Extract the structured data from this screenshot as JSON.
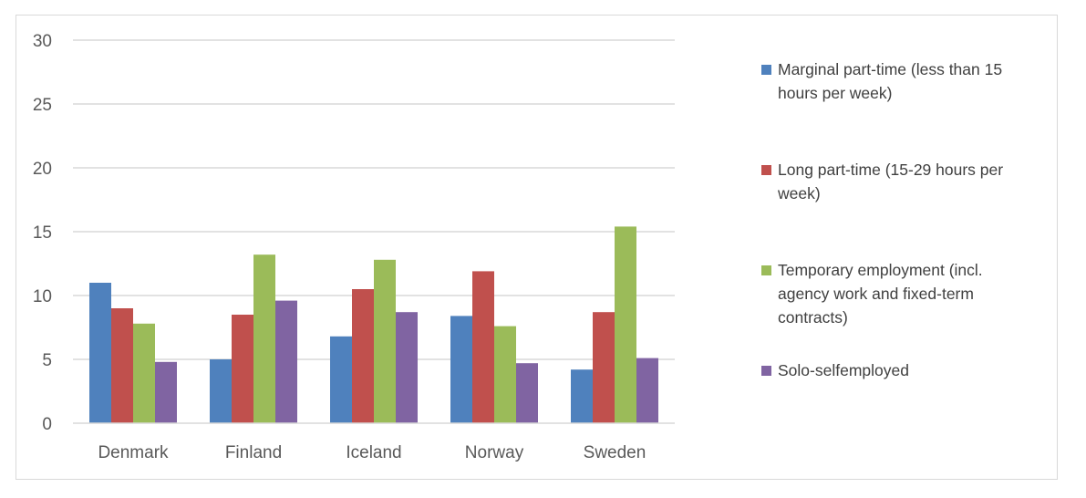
{
  "chart_data": {
    "type": "bar",
    "title": "",
    "xlabel": "",
    "ylabel": "",
    "ylim": [
      0,
      30
    ],
    "yticks": [
      0,
      5,
      10,
      15,
      20,
      25,
      30
    ],
    "grid": true,
    "legend_position": "right",
    "categories": [
      "Denmark",
      "Finland",
      "Iceland",
      "Norway",
      "Sweden"
    ],
    "series": [
      {
        "name": "Marginal part-time (less than 15 hours per week)",
        "color": "#4f81bd",
        "values": [
          11.0,
          5.0,
          6.8,
          8.4,
          4.2
        ]
      },
      {
        "name": "Long part-time (15-29 hours per week)",
        "color": "#c0504d",
        "values": [
          9.0,
          8.5,
          10.5,
          11.9,
          8.7
        ]
      },
      {
        "name": "Temporary employment (incl. agency work and fixed-term contracts)",
        "color": "#9bbb59",
        "values": [
          7.8,
          13.2,
          12.8,
          7.6,
          15.4
        ]
      },
      {
        "name": "Solo-selfemployed",
        "color": "#8064a2",
        "values": [
          4.8,
          9.6,
          8.7,
          4.7,
          5.1
        ]
      }
    ]
  }
}
